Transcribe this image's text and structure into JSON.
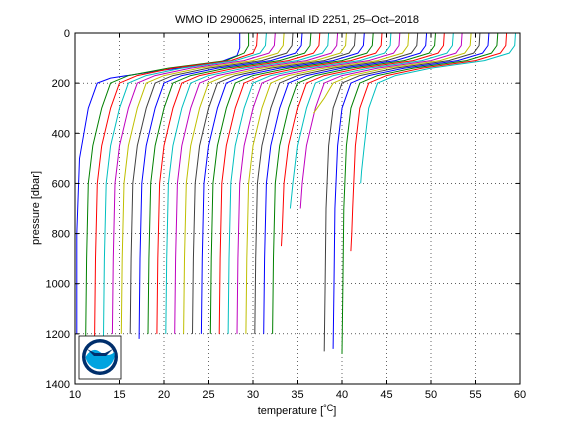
{
  "chart_data": {
    "type": "line",
    "title": "WMO ID 2900625, internal ID 2251, 25–Oct–2018",
    "xlabel_pre": "temperature [",
    "xlabel_unit": "°C",
    "xlabel_post": "]",
    "ylabel": "pressure [dbar]",
    "xlim": [
      10,
      60
    ],
    "ylim": [
      0,
      1400
    ],
    "y_reversed": true,
    "grid": true,
    "xticks": [
      10,
      15,
      20,
      25,
      30,
      35,
      40,
      45,
      50,
      55,
      60
    ],
    "yticks": [
      0,
      200,
      400,
      600,
      800,
      1000,
      1200,
      1400
    ],
    "color_cycle": [
      "#0000ff",
      "#008000",
      "#ff0000",
      "#00bfbf",
      "#bf00bf",
      "#bfbf00",
      "#404040"
    ],
    "note": "Waterfall plot: each profile is offset by +1 °C relative to the previous one.",
    "series": [
      {
        "x": [
          28.5,
          28.5,
          28.2,
          26,
          19.5,
          14,
          12.5,
          11.5,
          10.5,
          10.2,
          10.2
        ],
        "y": [
          0,
          60,
          90,
          120,
          150,
          180,
          200,
          300,
          500,
          800,
          1200
        ]
      },
      {
        "x": [
          29.5,
          29.5,
          29,
          27,
          20.5,
          16,
          14,
          13,
          12,
          11.5,
          11.3,
          11.2
        ],
        "y": [
          0,
          50,
          80,
          110,
          140,
          170,
          200,
          300,
          450,
          600,
          900,
          1210
        ]
      },
      {
        "x": [
          30.5,
          30.4,
          30,
          27.5,
          21,
          17,
          15,
          14,
          13,
          12.5,
          12.3,
          12.2
        ],
        "y": [
          0,
          50,
          80,
          110,
          140,
          170,
          200,
          300,
          450,
          600,
          900,
          1210
        ]
      },
      {
        "x": [
          31.5,
          31.4,
          30.8,
          28,
          22,
          18,
          16,
          15,
          14,
          13.5,
          13.3,
          13.2
        ],
        "y": [
          0,
          50,
          80,
          110,
          140,
          170,
          200,
          300,
          450,
          600,
          900,
          1210
        ]
      },
      {
        "x": [
          32.5,
          32.4,
          31.8,
          29,
          23,
          19,
          17,
          16,
          15,
          14.5,
          14.3,
          14.2
        ],
        "y": [
          0,
          50,
          80,
          110,
          140,
          170,
          200,
          300,
          450,
          600,
          900,
          1200
        ]
      },
      {
        "x": [
          33.5,
          33.4,
          32.8,
          30,
          24,
          20,
          18,
          17,
          16,
          15.5,
          15.3,
          15.2
        ],
        "y": [
          0,
          50,
          80,
          110,
          140,
          170,
          200,
          300,
          450,
          600,
          900,
          1200
        ]
      },
      {
        "x": [
          34.5,
          34.4,
          33.8,
          31,
          25,
          21,
          19,
          18,
          17,
          16.5,
          16.3,
          16.2
        ],
        "y": [
          0,
          50,
          80,
          110,
          140,
          170,
          200,
          300,
          450,
          600,
          900,
          1200
        ]
      },
      {
        "x": [
          35.5,
          35.4,
          34.8,
          32,
          26,
          22,
          20,
          19,
          18,
          17.5,
          17.3,
          17.2
        ],
        "y": [
          0,
          50,
          80,
          110,
          140,
          170,
          200,
          300,
          450,
          600,
          900,
          1220
        ]
      },
      {
        "x": [
          36.5,
          36.4,
          35.8,
          33,
          27,
          23,
          21,
          20,
          19,
          18.5,
          18.3,
          18.2
        ],
        "y": [
          0,
          50,
          80,
          110,
          140,
          170,
          200,
          300,
          450,
          600,
          900,
          1200
        ]
      },
      {
        "x": [
          37.5,
          37.4,
          36.8,
          34,
          28,
          24,
          22,
          21,
          20,
          19.5,
          19.3,
          19.2
        ],
        "y": [
          0,
          50,
          80,
          110,
          140,
          170,
          200,
          300,
          450,
          600,
          900,
          1200
        ]
      },
      {
        "x": [
          38.5,
          38.4,
          37.8,
          35,
          29,
          25,
          23,
          22,
          21,
          20.5,
          20.3,
          20.2
        ],
        "y": [
          0,
          50,
          80,
          110,
          140,
          170,
          200,
          300,
          450,
          600,
          900,
          1200
        ]
      },
      {
        "x": [
          39.5,
          39.4,
          38.8,
          36,
          30,
          26,
          24,
          23,
          22,
          21.5,
          21.3,
          21.2
        ],
        "y": [
          0,
          50,
          80,
          110,
          140,
          170,
          200,
          300,
          450,
          600,
          900,
          1200
        ]
      },
      {
        "x": [
          40.5,
          40.4,
          39.8,
          37,
          31,
          27,
          25,
          24,
          23,
          22.5,
          22.3,
          22.2
        ],
        "y": [
          0,
          50,
          80,
          110,
          140,
          170,
          200,
          300,
          450,
          600,
          900,
          1200
        ]
      },
      {
        "x": [
          41.5,
          41.4,
          40.8,
          38,
          32,
          28,
          26,
          25,
          24,
          23.5,
          23.3,
          23.2
        ],
        "y": [
          0,
          50,
          80,
          110,
          140,
          170,
          200,
          300,
          450,
          600,
          900,
          1200
        ]
      },
      {
        "x": [
          42.5,
          42.4,
          41.8,
          39,
          33,
          29,
          27,
          26,
          25,
          24.5,
          24.3,
          24.2
        ],
        "y": [
          0,
          50,
          80,
          110,
          140,
          170,
          200,
          300,
          450,
          600,
          900,
          1200
        ]
      },
      {
        "x": [
          43.5,
          43.4,
          42.8,
          40,
          34,
          30,
          28,
          27,
          26,
          25.5,
          25.3,
          25.2
        ],
        "y": [
          0,
          50,
          80,
          110,
          140,
          170,
          200,
          300,
          450,
          600,
          900,
          1200
        ]
      },
      {
        "x": [
          44.5,
          44.4,
          43.8,
          41,
          35,
          31,
          29,
          28,
          27,
          26.5,
          26.3,
          26.2
        ],
        "y": [
          0,
          50,
          80,
          110,
          140,
          170,
          200,
          300,
          450,
          600,
          900,
          1200
        ]
      },
      {
        "x": [
          45.5,
          45.4,
          44.8,
          42,
          36,
          32,
          30,
          29,
          28,
          27.5,
          27.3,
          27.2
        ],
        "y": [
          0,
          50,
          80,
          110,
          140,
          170,
          200,
          300,
          450,
          600,
          900,
          1200
        ]
      },
      {
        "x": [
          46.5,
          46.4,
          45.8,
          43,
          37,
          33,
          31,
          30,
          29,
          28.5,
          28.3,
          28.2
        ],
        "y": [
          0,
          50,
          80,
          110,
          140,
          170,
          200,
          300,
          450,
          600,
          900,
          1200
        ]
      },
      {
        "x": [
          47.5,
          47.4,
          46.8,
          44,
          38,
          34,
          32,
          31,
          30,
          29.5,
          29.3,
          29.2
        ],
        "y": [
          0,
          50,
          80,
          110,
          140,
          170,
          200,
          300,
          450,
          600,
          900,
          1200
        ]
      },
      {
        "x": [
          48.5,
          48.4,
          47.8,
          45,
          39,
          35,
          33,
          32,
          31,
          30.5,
          30.3,
          30.2
        ],
        "y": [
          0,
          50,
          80,
          110,
          140,
          170,
          200,
          300,
          450,
          600,
          900,
          1200
        ]
      },
      {
        "x": [
          49.5,
          49.4,
          48.8,
          46,
          40,
          36,
          34,
          33,
          32,
          31.5,
          31.3,
          31.2
        ],
        "y": [
          0,
          50,
          80,
          110,
          140,
          170,
          200,
          300,
          450,
          600,
          900,
          1200
        ]
      },
      {
        "x": [
          50.5,
          50.4,
          49.8,
          47,
          41,
          37,
          35,
          34,
          33,
          32.5,
          32.3,
          32.2
        ],
        "y": [
          0,
          50,
          80,
          110,
          140,
          170,
          200,
          300,
          450,
          600,
          900,
          1200
        ]
      },
      {
        "x": [
          51.5,
          51.4,
          50.8,
          48,
          42,
          38,
          36,
          35,
          34,
          33.5,
          33.3,
          33.2
        ],
        "y": [
          0,
          50,
          80,
          110,
          140,
          170,
          200,
          300,
          450,
          600,
          780,
          850
        ]
      },
      {
        "x": [
          52.5,
          52.4,
          51.8,
          49,
          43,
          39,
          37,
          36,
          35,
          34.5,
          34.2
        ],
        "y": [
          0,
          50,
          80,
          110,
          140,
          170,
          200,
          300,
          450,
          600,
          700
        ]
      },
      {
        "x": [
          53.5,
          53.4,
          52.8,
          50,
          44,
          40,
          38,
          37,
          36,
          35.5,
          35.3
        ],
        "y": [
          0,
          50,
          80,
          110,
          140,
          170,
          200,
          300,
          450,
          600,
          700
        ]
      },
      {
        "x": [
          54.5,
          54.4,
          53.8,
          51,
          45,
          41,
          39,
          38,
          37.2,
          36.8
        ],
        "y": [
          0,
          50,
          80,
          110,
          140,
          170,
          200,
          260,
          300,
          320
        ]
      },
      {
        "x": [
          55.5,
          55.4,
          54.8,
          52,
          46,
          42,
          40,
          39,
          38.5,
          38.2,
          38.1,
          38
        ],
        "y": [
          0,
          50,
          80,
          110,
          140,
          170,
          200,
          300,
          450,
          700,
          1000,
          1270
        ]
      },
      {
        "x": [
          56.5,
          56.4,
          55.8,
          53,
          47,
          43,
          41,
          40,
          39.5,
          39.2,
          39.1,
          39
        ],
        "y": [
          0,
          50,
          80,
          110,
          140,
          170,
          200,
          300,
          450,
          700,
          1000,
          1260
        ]
      },
      {
        "x": [
          57.5,
          57.4,
          56.8,
          54,
          48,
          44,
          42,
          41,
          40.5,
          40.2,
          40.1,
          40
        ],
        "y": [
          0,
          50,
          80,
          110,
          140,
          170,
          200,
          300,
          450,
          700,
          1000,
          1280
        ]
      },
      {
        "x": [
          58.5,
          58.4,
          57.8,
          55,
          49,
          45,
          43,
          42,
          41.5,
          41.2,
          41.1,
          41
        ],
        "y": [
          0,
          50,
          80,
          110,
          140,
          170,
          200,
          300,
          450,
          700,
          800,
          870
        ]
      },
      {
        "x": [
          59.5,
          59.4,
          58.8,
          56,
          50,
          46,
          44,
          43,
          42.5,
          42.2,
          42.1
        ],
        "y": [
          0,
          50,
          80,
          110,
          140,
          170,
          200,
          300,
          450,
          550,
          600
        ]
      }
    ]
  },
  "logo": {
    "text": "NOAA",
    "colors": {
      "dark": "#002f6c",
      "light": "#00a3e0",
      "white": "#ffffff"
    }
  }
}
